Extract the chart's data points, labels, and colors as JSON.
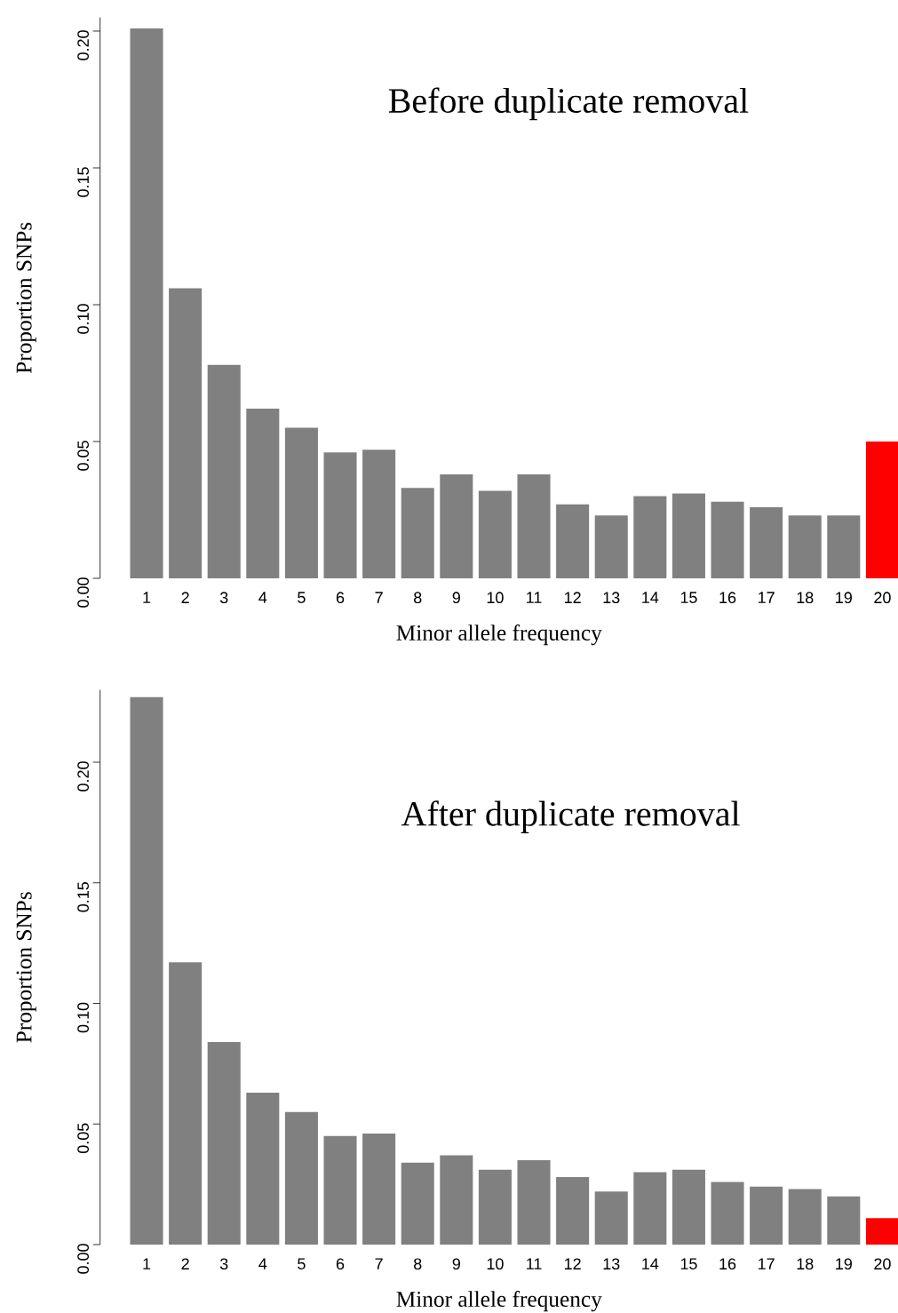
{
  "chart_data": [
    {
      "type": "bar",
      "title": "Before duplicate removal",
      "xlabel": "Minor allele frequency",
      "ylabel": "Proportion SNPs",
      "categories": [
        "1",
        "2",
        "3",
        "4",
        "5",
        "6",
        "7",
        "8",
        "9",
        "10",
        "11",
        "12",
        "13",
        "14",
        "15",
        "16",
        "17",
        "18",
        "19",
        "20"
      ],
      "values": [
        0.201,
        0.106,
        0.078,
        0.062,
        0.055,
        0.046,
        0.047,
        0.033,
        0.038,
        0.032,
        0.038,
        0.027,
        0.023,
        0.03,
        0.031,
        0.028,
        0.026,
        0.023,
        0.023,
        0.05
      ],
      "colors": [
        "#808080",
        "#808080",
        "#808080",
        "#808080",
        "#808080",
        "#808080",
        "#808080",
        "#808080",
        "#808080",
        "#808080",
        "#808080",
        "#808080",
        "#808080",
        "#808080",
        "#808080",
        "#808080",
        "#808080",
        "#808080",
        "#808080",
        "#ff0000"
      ],
      "ylim": [
        0,
        0.205
      ],
      "yticks": [
        {
          "value": 0,
          "label": "0.00"
        },
        {
          "value": 0.05,
          "label": "0.05"
        },
        {
          "value": 0.1,
          "label": "0.10"
        },
        {
          "value": 0.15,
          "label": "0.15"
        },
        {
          "value": 0.2,
          "label": "0.20"
        }
      ]
    },
    {
      "type": "bar",
      "title": "After duplicate removal",
      "xlabel": "Minor allele frequency",
      "ylabel": "Proportion SNPs",
      "categories": [
        "1",
        "2",
        "3",
        "4",
        "5",
        "6",
        "7",
        "8",
        "9",
        "10",
        "11",
        "12",
        "13",
        "14",
        "15",
        "16",
        "17",
        "18",
        "19",
        "20"
      ],
      "values": [
        0.227,
        0.117,
        0.084,
        0.063,
        0.055,
        0.045,
        0.046,
        0.034,
        0.037,
        0.031,
        0.035,
        0.028,
        0.022,
        0.03,
        0.031,
        0.026,
        0.024,
        0.023,
        0.02,
        0.011
      ],
      "colors": [
        "#808080",
        "#808080",
        "#808080",
        "#808080",
        "#808080",
        "#808080",
        "#808080",
        "#808080",
        "#808080",
        "#808080",
        "#808080",
        "#808080",
        "#808080",
        "#808080",
        "#808080",
        "#808080",
        "#808080",
        "#808080",
        "#808080",
        "#ff0000"
      ],
      "ylim": [
        0,
        0.23
      ],
      "yticks": [
        {
          "value": 0,
          "label": "0.00"
        },
        {
          "value": 0.05,
          "label": "0.05"
        },
        {
          "value": 0.1,
          "label": "0.10"
        },
        {
          "value": 0.15,
          "label": "0.15"
        },
        {
          "value": 0.2,
          "label": "0.20"
        }
      ]
    }
  ]
}
